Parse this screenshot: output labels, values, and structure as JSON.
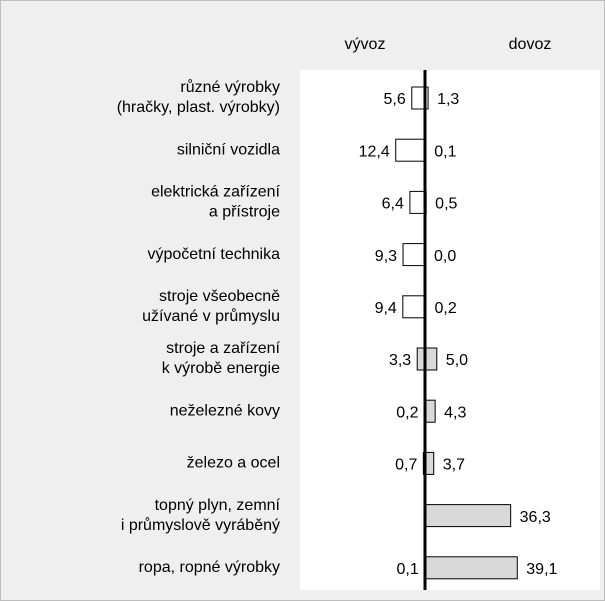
{
  "chart_data": {
    "type": "bar",
    "orientation": "horizontal-diverging",
    "categories": [
      [
        "různé výrobky",
        "(hračky, plast. výrobky)"
      ],
      [
        "silniční vozidla"
      ],
      [
        "elektrická zařízení",
        "a přístroje"
      ],
      [
        "výpočetní technika"
      ],
      [
        "stroje všeobecně",
        "užívané v průmyslu"
      ],
      [
        "stroje a zařízení",
        "k výrobě energie"
      ],
      [
        "neželezné kovy"
      ],
      [
        "železo a ocel"
      ],
      [
        "topný plyn, zemní",
        "i průmyslově vyráběný"
      ],
      [
        "ropa, ropné výrobky"
      ]
    ],
    "bar_colors": [
      "#ffffff",
      "#ffffff",
      "#ffffff",
      "#ffffff",
      "#ffffff",
      "#d9d9d9",
      "#d9d9d9",
      "#d9d9d9",
      "#d9d9d9",
      "#d9d9d9"
    ],
    "series": [
      {
        "name": "vývoz",
        "side": "left",
        "values": [
          5.6,
          12.4,
          6.4,
          9.3,
          9.4,
          3.3,
          0.2,
          0.7,
          null,
          0.1
        ],
        "value_labels": [
          "5,6",
          "12,4",
          "6,4",
          "9,3",
          "9,4",
          "3,3",
          "0,2",
          "0,7",
          null,
          "0,1"
        ]
      },
      {
        "name": "dovoz",
        "side": "right",
        "values": [
          1.3,
          0.1,
          0.5,
          0.0,
          0.2,
          5.0,
          4.3,
          3.7,
          36.3,
          39.1
        ],
        "value_labels": [
          "1,3",
          "0,1",
          "0,5",
          "0,0",
          "0,2",
          "5,0",
          "4,3",
          "3,7",
          "36,3",
          "39,1"
        ]
      }
    ]
  }
}
